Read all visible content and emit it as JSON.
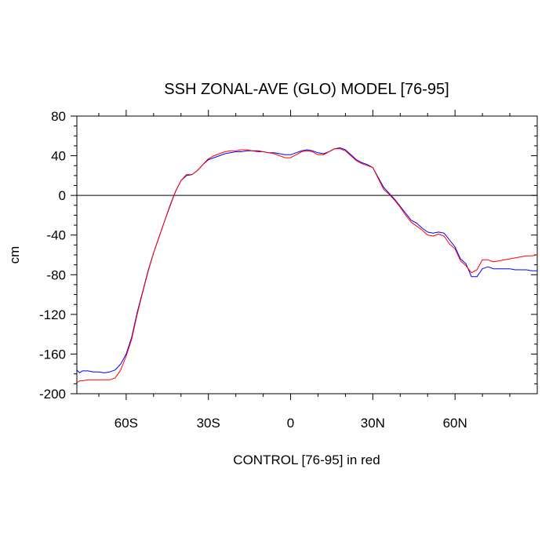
{
  "chart_data": {
    "type": "line",
    "title": "SSH ZONAL-AVE (GLO) MODEL [76-95]",
    "xlabel": "CONTROL [76-95] in red",
    "ylabel": "cm",
    "xlim": [
      -78,
      90
    ],
    "ylim": [
      -200,
      80
    ],
    "x_ticks": [
      {
        "value": -60,
        "label": "60S"
      },
      {
        "value": -30,
        "label": "30S"
      },
      {
        "value": 0,
        "label": "0"
      },
      {
        "value": 30,
        "label": "30N"
      },
      {
        "value": 60,
        "label": "60N"
      }
    ],
    "y_ticks": [
      {
        "value": 80,
        "label": "80"
      },
      {
        "value": 40,
        "label": "40"
      },
      {
        "value": 0,
        "label": "0"
      },
      {
        "value": -40,
        "label": "-40"
      },
      {
        "value": -80,
        "label": "-80"
      },
      {
        "value": -120,
        "label": "-120"
      },
      {
        "value": -160,
        "label": "-160"
      },
      {
        "value": -200,
        "label": "-200"
      }
    ],
    "zero_line": true,
    "grid": false,
    "series": [
      {
        "color": "#0000ff",
        "x": [
          -78,
          -77,
          -76,
          -74,
          -72,
          -70,
          -68,
          -66,
          -64,
          -62,
          -60,
          -58,
          -56,
          -54,
          -52,
          -50,
          -48,
          -46,
          -44,
          -42,
          -40,
          -38,
          -36,
          -34,
          -32,
          -30,
          -28,
          -26,
          -24,
          -22,
          -20,
          -18,
          -16,
          -14,
          -12,
          -10,
          -8,
          -6,
          -4,
          -2,
          0,
          2,
          4,
          6,
          8,
          10,
          12,
          14,
          16,
          18,
          20,
          22,
          24,
          26,
          28,
          30,
          32,
          34,
          36,
          38,
          40,
          42,
          44,
          46,
          48,
          50,
          52,
          54,
          56,
          58,
          60,
          62,
          64,
          66,
          68,
          70,
          72,
          74,
          76,
          78,
          80,
          82,
          84,
          86,
          88,
          90
        ],
        "y": [
          -176,
          -179,
          -177,
          -177,
          -178,
          -178,
          -179,
          -178,
          -176,
          -170,
          -160,
          -143,
          -118,
          -97,
          -76,
          -58,
          -42,
          -26,
          -10,
          4,
          15,
          20,
          21,
          25,
          31,
          36,
          38,
          40,
          42,
          43,
          44,
          44,
          45,
          45,
          45,
          44,
          43,
          43,
          42,
          41,
          41,
          43,
          45,
          46,
          45,
          43,
          42,
          44,
          47,
          48,
          46,
          41,
          36,
          33,
          31,
          28,
          18,
          8,
          2,
          -4,
          -11,
          -18,
          -25,
          -28,
          -33,
          -37,
          -38,
          -37,
          -38,
          -45,
          -52,
          -64,
          -69,
          -82,
          -82,
          -74,
          -72,
          -74,
          -74,
          -74,
          -74,
          -75,
          -75,
          -75,
          -76,
          -76
        ]
      },
      {
        "color": "#ff0000",
        "x": [
          -78,
          -77,
          -76,
          -74,
          -72,
          -70,
          -68,
          -66,
          -64,
          -62,
          -60,
          -58,
          -56,
          -54,
          -52,
          -50,
          -48,
          -46,
          -44,
          -42,
          -40,
          -38,
          -36,
          -34,
          -32,
          -30,
          -28,
          -26,
          -24,
          -22,
          -20,
          -18,
          -16,
          -14,
          -12,
          -10,
          -8,
          -6,
          -4,
          -2,
          0,
          2,
          4,
          6,
          8,
          10,
          12,
          14,
          16,
          18,
          20,
          22,
          24,
          26,
          28,
          30,
          32,
          34,
          36,
          38,
          40,
          42,
          44,
          46,
          48,
          50,
          52,
          54,
          56,
          58,
          60,
          62,
          64,
          66,
          68,
          70,
          72,
          74,
          76,
          78,
          80,
          82,
          84,
          86,
          88,
          90
        ],
        "y": [
          -189,
          -187,
          -187,
          -186,
          -186,
          -186,
          -186,
          -186,
          -184,
          -176,
          -162,
          -145,
          -120,
          -98,
          -77,
          -58,
          -42,
          -26,
          -11,
          4,
          15,
          21,
          21,
          25,
          31,
          37,
          40,
          42,
          44,
          45,
          45,
          46,
          46,
          45,
          44,
          44,
          43,
          42,
          40,
          38,
          38,
          41,
          44,
          45,
          44,
          41,
          41,
          44,
          47,
          47,
          45,
          40,
          35,
          32,
          30,
          28,
          17,
          6,
          1,
          -5,
          -12,
          -20,
          -27,
          -31,
          -35,
          -40,
          -41,
          -39,
          -41,
          -49,
          -54,
          -66,
          -71,
          -78,
          -75,
          -65,
          -65,
          -67,
          -66,
          -65,
          -64,
          -63,
          -62,
          -61,
          -61,
          -60
        ]
      }
    ]
  }
}
